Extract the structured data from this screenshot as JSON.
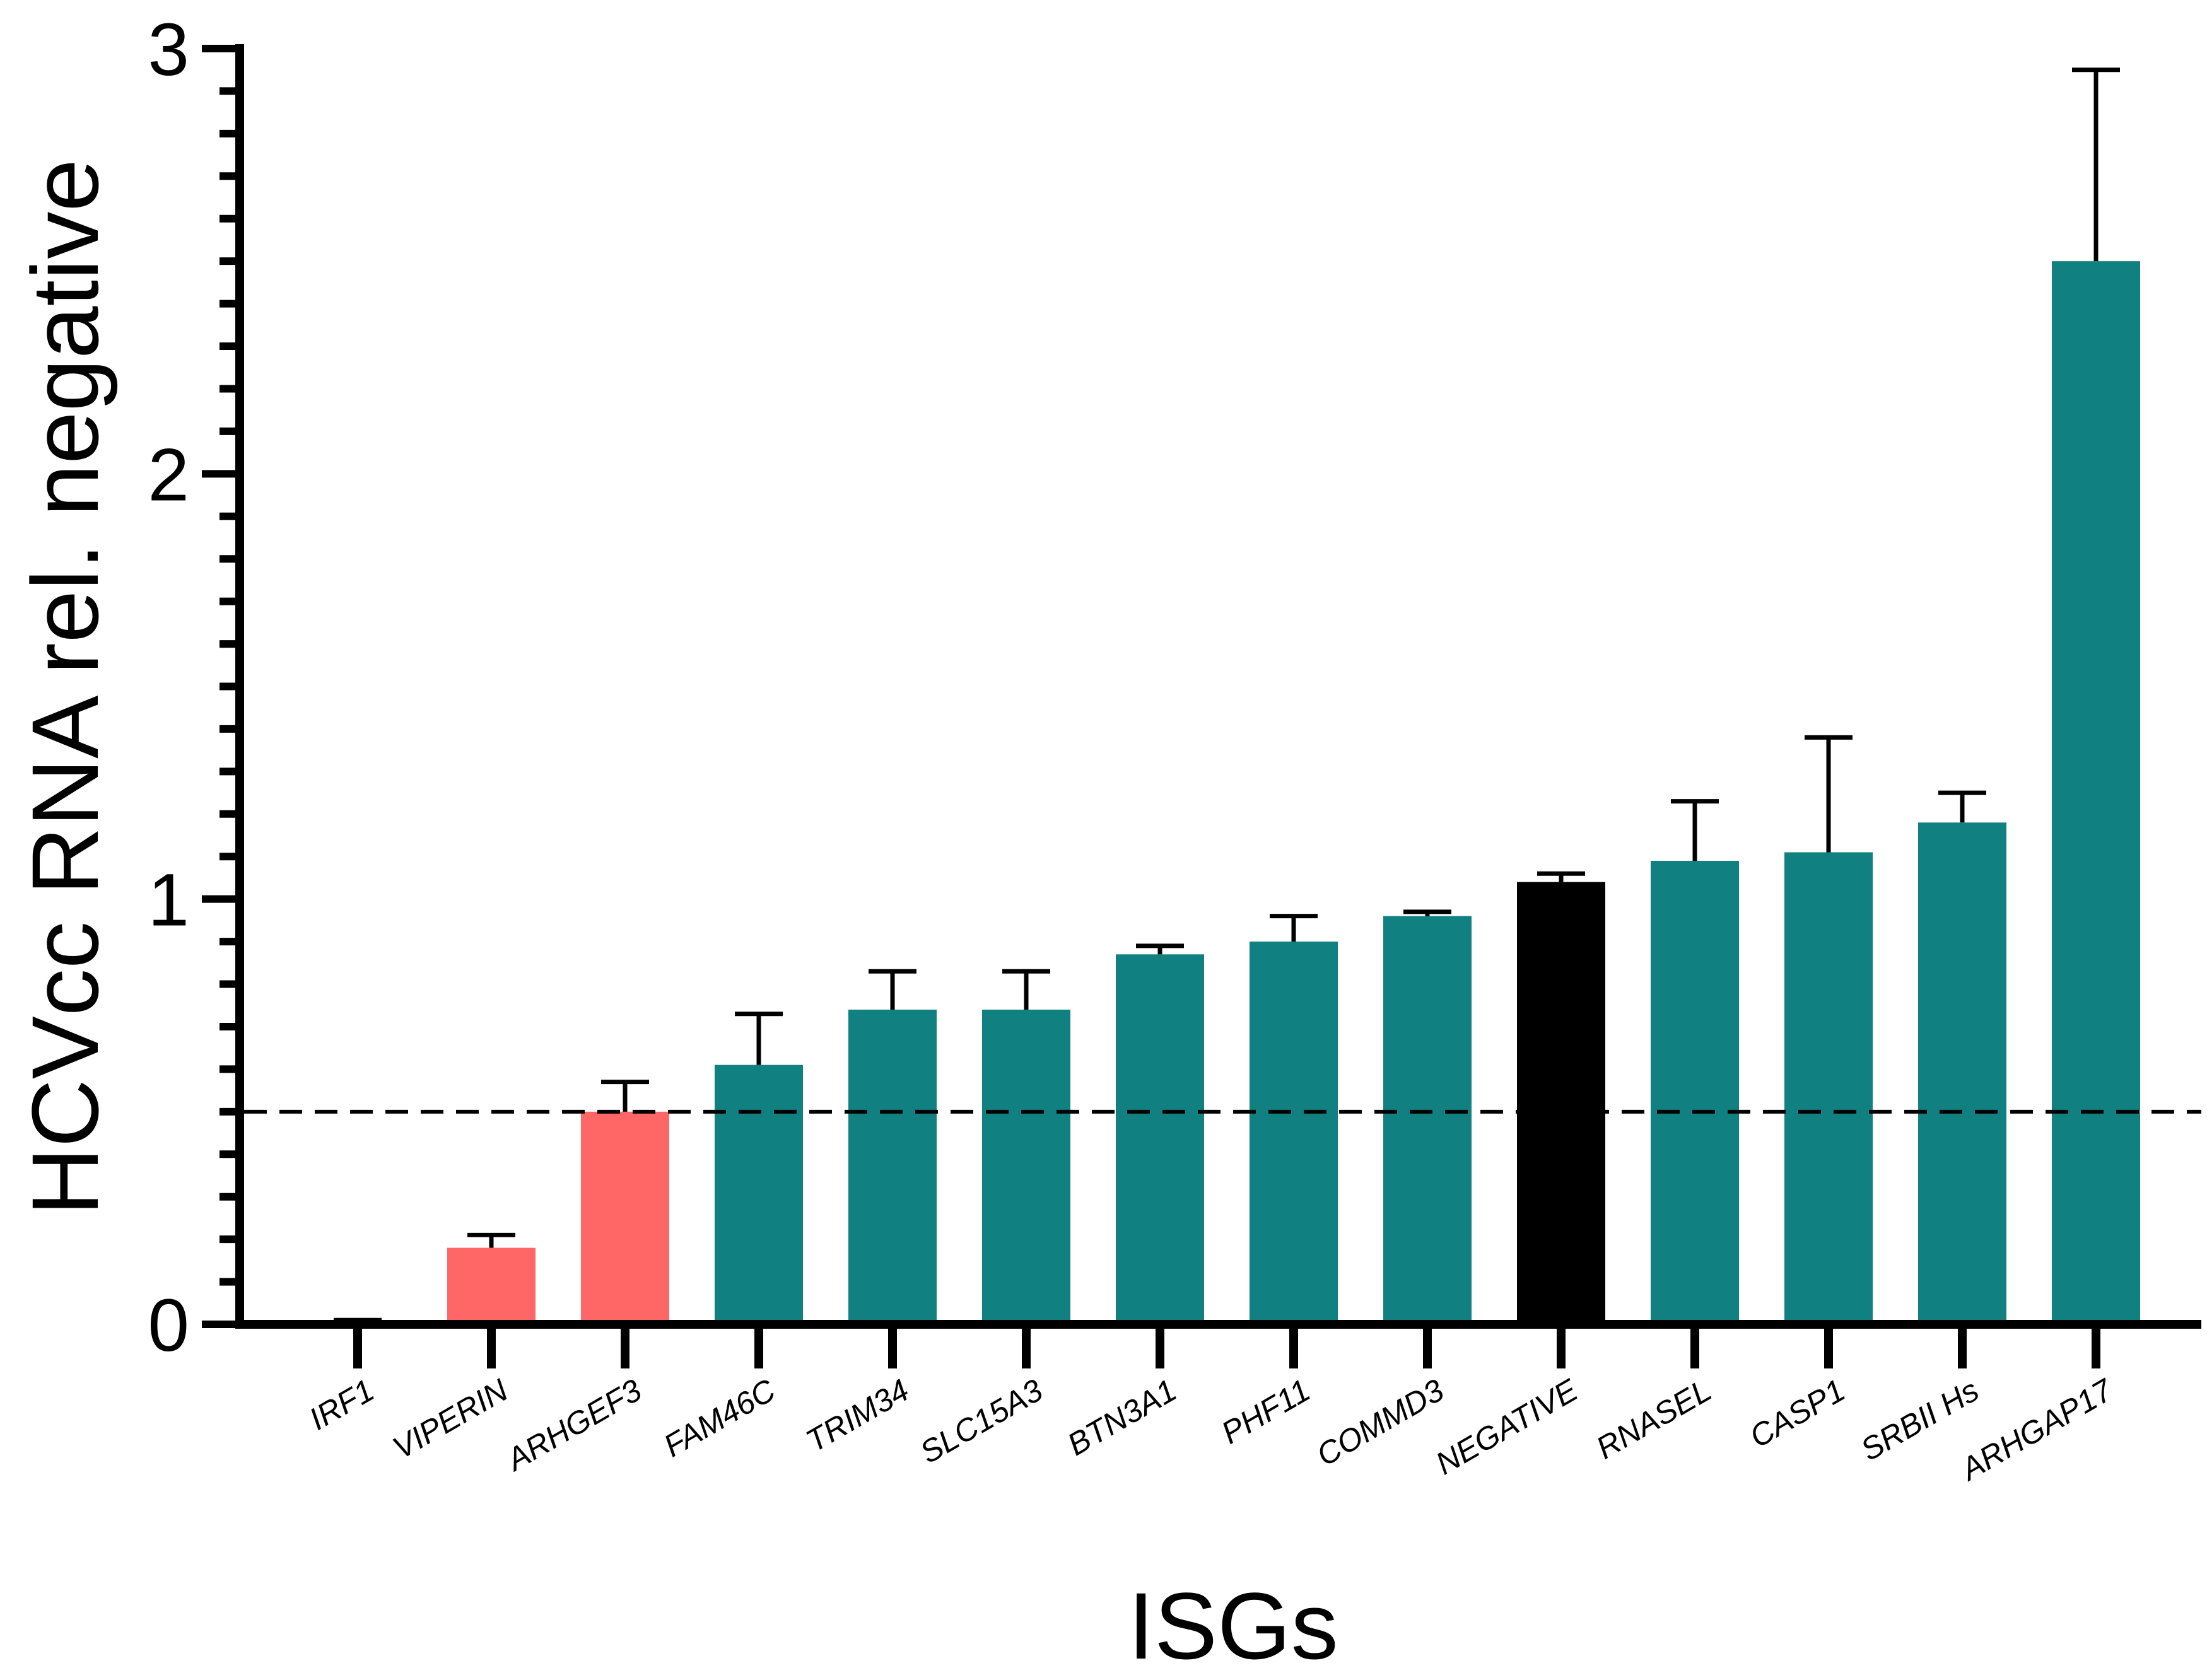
{
  "chart_data": {
    "type": "bar",
    "title": "",
    "xlabel": "ISGs",
    "ylabel": "HCVcc RNA rel. negative",
    "ylim": [
      0,
      3
    ],
    "y_ticks": [
      0,
      1,
      2,
      3
    ],
    "y_tick_labels": [
      "0",
      "1",
      "2",
      "3"
    ],
    "y_minor_tick_step": 0.1,
    "threshold_line": 0.5,
    "grid": false,
    "legend": "none",
    "categories": [
      "IRF1",
      "VIPERIN",
      "ARHGEF3",
      "FAM46C",
      "TRIM34",
      "SLC15A3",
      "BTN3A1",
      "PHF11",
      "COMMD3",
      "NEGATIVE",
      "RNASEL",
      "CASP1",
      "SRBII Hs",
      "ARHGAP17"
    ],
    "values": [
      0.005,
      0.18,
      0.5,
      0.61,
      0.74,
      0.74,
      0.87,
      0.9,
      0.96,
      1.04,
      1.09,
      1.11,
      1.18,
      2.5
    ],
    "error_upper": [
      0.01,
      0.21,
      0.57,
      0.73,
      0.83,
      0.83,
      0.89,
      0.96,
      0.97,
      1.06,
      1.23,
      1.38,
      1.25,
      2.95
    ],
    "colors": {
      "below_threshold": "#ff6666",
      "above_threshold": "#118080",
      "control": "#000000"
    },
    "bar_color_keys": [
      "below_threshold",
      "below_threshold",
      "below_threshold",
      "above_threshold",
      "above_threshold",
      "above_threshold",
      "above_threshold",
      "above_threshold",
      "above_threshold",
      "control",
      "above_threshold",
      "above_threshold",
      "above_threshold",
      "above_threshold"
    ]
  }
}
